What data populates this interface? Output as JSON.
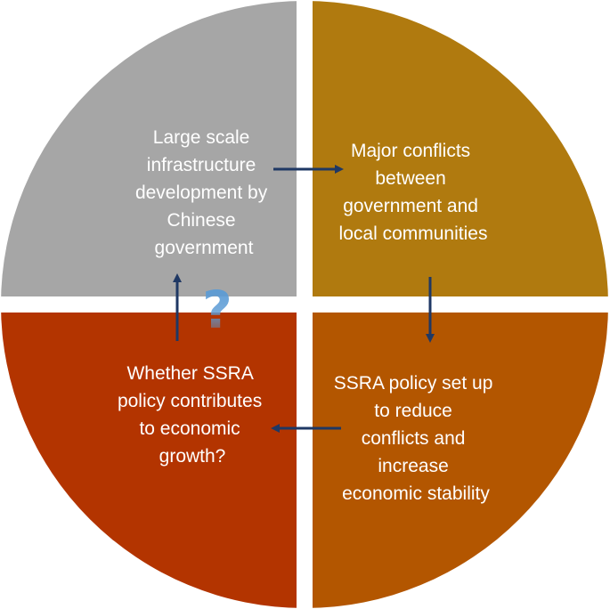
{
  "quadrants": {
    "top_left": {
      "lines": [
        "Large scale",
        "infrastructure",
        "development by",
        "Chinese",
        "government"
      ],
      "color": "#a6a6a6"
    },
    "top_right": {
      "lines": [
        "Major conflicts",
        "between",
        "government and",
        "local communities"
      ],
      "color": "#b07a0f"
    },
    "bottom_right": {
      "lines": [
        "SSRA policy set up",
        "to reduce",
        "conflicts and",
        "increase",
        "economic stability"
      ],
      "color": "#b35600"
    },
    "bottom_left": {
      "lines": [
        "Whether SSRA",
        "policy contributes",
        "to economic",
        "growth?"
      ],
      "color": "#b33400"
    }
  },
  "question_mark": {
    "symbol": "?",
    "color": "#5b9bd5"
  },
  "arrow_color": "#1f3864"
}
